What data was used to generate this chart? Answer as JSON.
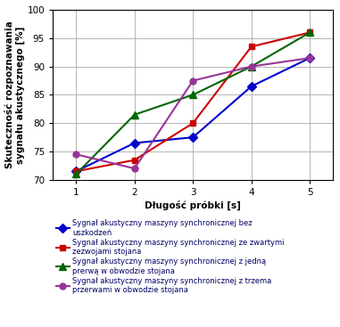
{
  "x": [
    1,
    2,
    3,
    4,
    5
  ],
  "series": [
    {
      "label": "Sygnał akustyczny maszyny synchronicznej bez\nuszkodzeń",
      "values": [
        71.5,
        76.5,
        77.5,
        86.5,
        91.5
      ],
      "color": "#0000CC",
      "marker": "D",
      "markersize": 5
    },
    {
      "label": "Sygnał akustyczny maszyny synchronicznej ze zwartymi\nzezwojami stojana",
      "values": [
        71.5,
        73.5,
        80.0,
        93.5,
        96.0
      ],
      "color": "#CC0000",
      "marker": "s",
      "markersize": 5
    },
    {
      "label": "Sygnał akustyczny maszyny synchronicznej z jedną\nprerwą w obwodzie stojana",
      "values": [
        71.0,
        81.5,
        85.0,
        90.0,
        96.0
      ],
      "color": "#006600",
      "marker": "^",
      "markersize": 6
    },
    {
      "label": "Sygnał akustyczny maszyny synchronicznej z trzema\nprzerwami w obwodzie stojana",
      "values": [
        74.5,
        72.0,
        87.5,
        90.0,
        91.5
      ],
      "color": "#993399",
      "marker": "o",
      "markersize": 5
    }
  ],
  "xlabel": "Długość próbki [s]",
  "ylabel": "Skuteczność rozpoznawania\nsygnału akustycznego [%]",
  "xlim": [
    0.6,
    5.4
  ],
  "ylim": [
    70,
    100
  ],
  "yticks": [
    70,
    75,
    80,
    85,
    90,
    95,
    100
  ],
  "xticks": [
    1,
    2,
    3,
    4,
    5
  ],
  "grid_color": "#AAAAAA",
  "background_color": "#FFFFFF",
  "axis_label_fontsize": 7.5,
  "tick_fontsize": 7.5,
  "legend_fontsize": 6.0
}
